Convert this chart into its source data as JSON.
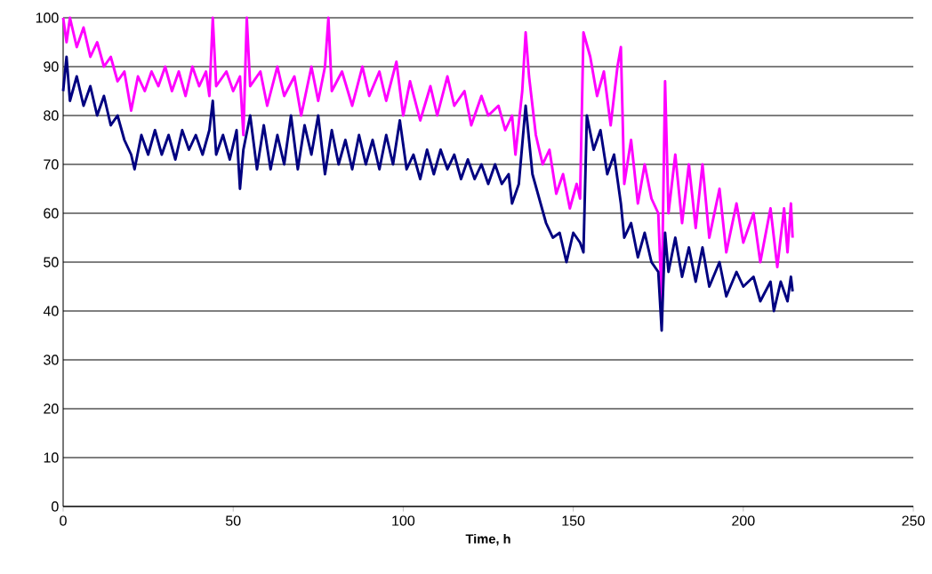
{
  "chart_data": {
    "type": "line",
    "xlabel": "Time, h",
    "xlim": [
      0,
      250
    ],
    "xticks": [
      0,
      50,
      100,
      150,
      200,
      250
    ],
    "ylim": [
      0,
      100
    ],
    "yticks": [
      0,
      10,
      20,
      30,
      40,
      50,
      60,
      70,
      80,
      90,
      100
    ],
    "grid": "y",
    "series": [
      {
        "color": "#ff00ff",
        "x": [
          0,
          1,
          2,
          4,
          6,
          8,
          10,
          12,
          14,
          16,
          18,
          20,
          22,
          24,
          26,
          28,
          30,
          32,
          34,
          36,
          38,
          40,
          42,
          43,
          44,
          45,
          48,
          50,
          52,
          53,
          54,
          55,
          58,
          60,
          63,
          65,
          68,
          70,
          73,
          75,
          77,
          78,
          79,
          82,
          85,
          88,
          90,
          93,
          95,
          98,
          100,
          102,
          105,
          108,
          110,
          113,
          115,
          118,
          120,
          123,
          125,
          128,
          130,
          132,
          133,
          135,
          136,
          137,
          139,
          141,
          143,
          145,
          147,
          149,
          151,
          152,
          153,
          155,
          157,
          159,
          161,
          163,
          164,
          165,
          167,
          169,
          171,
          173,
          175,
          176,
          177,
          178,
          180,
          182,
          184,
          186,
          188,
          190,
          193,
          195,
          198,
          200,
          203,
          205,
          208,
          210,
          212,
          213,
          214,
          214.5
        ],
        "values": [
          100,
          95,
          100,
          94,
          98,
          92,
          95,
          90,
          92,
          87,
          89,
          81,
          88,
          85,
          89,
          86,
          90,
          85,
          89,
          84,
          90,
          86,
          89,
          84,
          100,
          86,
          89,
          85,
          88,
          76,
          100,
          86,
          89,
          82,
          90,
          84,
          88,
          80,
          90,
          83,
          90,
          100,
          85,
          89,
          82,
          90,
          84,
          89,
          83,
          91,
          80,
          87,
          79,
          86,
          80,
          88,
          82,
          85,
          78,
          84,
          80,
          82,
          77,
          80,
          72,
          85,
          97,
          88,
          76,
          70,
          73,
          64,
          68,
          61,
          66,
          63,
          97,
          92,
          84,
          89,
          78,
          90,
          94,
          66,
          75,
          62,
          70,
          63,
          60,
          42,
          87,
          60,
          72,
          58,
          70,
          57,
          70,
          55,
          65,
          52,
          62,
          54,
          60,
          50,
          61,
          49,
          61,
          52,
          62,
          55
        ]
      },
      {
        "color": "#000080",
        "x": [
          0,
          1,
          2,
          4,
          6,
          8,
          10,
          12,
          14,
          16,
          18,
          20,
          21,
          23,
          25,
          27,
          29,
          31,
          33,
          35,
          37,
          39,
          41,
          43,
          44,
          45,
          47,
          49,
          51,
          52,
          53,
          55,
          57,
          59,
          61,
          63,
          65,
          67,
          69,
          71,
          73,
          75,
          77,
          79,
          81,
          83,
          85,
          87,
          89,
          91,
          93,
          95,
          97,
          99,
          101,
          103,
          105,
          107,
          109,
          111,
          113,
          115,
          117,
          119,
          121,
          123,
          125,
          127,
          129,
          131,
          132,
          134,
          136,
          138,
          140,
          142,
          144,
          146,
          148,
          150,
          152,
          153,
          154,
          156,
          158,
          160,
          162,
          164,
          165,
          167,
          169,
          171,
          173,
          175,
          176,
          177,
          178,
          180,
          182,
          184,
          186,
          188,
          190,
          193,
          195,
          198,
          200,
          203,
          205,
          208,
          209,
          211,
          213,
          214,
          214.5
        ],
        "values": [
          85,
          92,
          83,
          88,
          82,
          86,
          80,
          84,
          78,
          80,
          75,
          72,
          69,
          76,
          72,
          77,
          72,
          76,
          71,
          77,
          73,
          76,
          72,
          77,
          83,
          72,
          76,
          71,
          77,
          65,
          73,
          80,
          69,
          78,
          69,
          76,
          70,
          80,
          69,
          78,
          72,
          80,
          68,
          77,
          70,
          75,
          69,
          76,
          70,
          75,
          69,
          76,
          70,
          79,
          69,
          72,
          67,
          73,
          68,
          73,
          69,
          72,
          67,
          71,
          67,
          70,
          66,
          70,
          66,
          68,
          62,
          66,
          82,
          68,
          63,
          58,
          55,
          56,
          50,
          56,
          54,
          52,
          80,
          73,
          77,
          68,
          72,
          62,
          55,
          58,
          51,
          56,
          50,
          48,
          36,
          56,
          48,
          55,
          47,
          53,
          46,
          53,
          45,
          50,
          43,
          48,
          45,
          47,
          42,
          46,
          40,
          46,
          42,
          47,
          44
        ]
      }
    ]
  }
}
